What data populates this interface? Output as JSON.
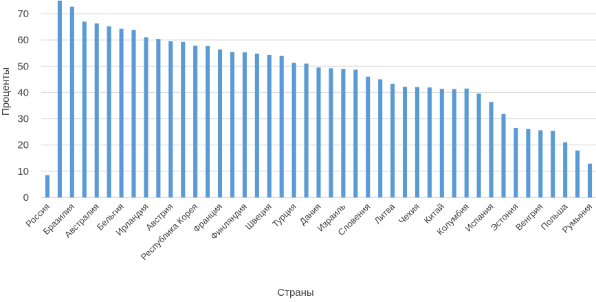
{
  "chart_data": {
    "type": "bar",
    "xlabel": "Страны",
    "ylabel": "Проценты",
    "ylim": [
      0,
      75
    ],
    "yticks": [
      0,
      10,
      20,
      30,
      40,
      50,
      60,
      70
    ],
    "grid": true,
    "legend": "none",
    "bar_color": "#5b9bd5",
    "categories": [
      "Россия",
      "",
      "Бразилия",
      "",
      "Австралия",
      "",
      "Бельгия",
      "",
      "Ирландия",
      "",
      "Австрия",
      "",
      "Республика Корея",
      "",
      "Франция",
      "",
      "Финляндия",
      "",
      "Швеция",
      "",
      "Турция",
      "",
      "Дания",
      "",
      "Израиль",
      "",
      "Словения",
      "",
      "Литва",
      "",
      "Чехия",
      "",
      "Китай",
      "",
      "Колумбия",
      "",
      "Испания",
      "",
      "Эстония",
      "",
      "Венгрия",
      "",
      "Польша",
      "",
      "Румыния"
    ],
    "values": [
      8.5,
      76,
      72.7,
      67,
      66.3,
      65.2,
      64.3,
      63.8,
      61,
      60.3,
      59.5,
      59.3,
      57.8,
      57.7,
      56.4,
      55.4,
      55.3,
      54.8,
      54.3,
      54,
      51.3,
      51,
      49.5,
      49.2,
      49,
      48.7,
      46,
      45,
      43.3,
      42.2,
      42.1,
      41.9,
      41.4,
      41.3,
      41.5,
      39.6,
      36.4,
      31.8,
      26.5,
      26.1,
      25.6,
      25.4,
      21,
      17.9,
      12.9
    ]
  }
}
